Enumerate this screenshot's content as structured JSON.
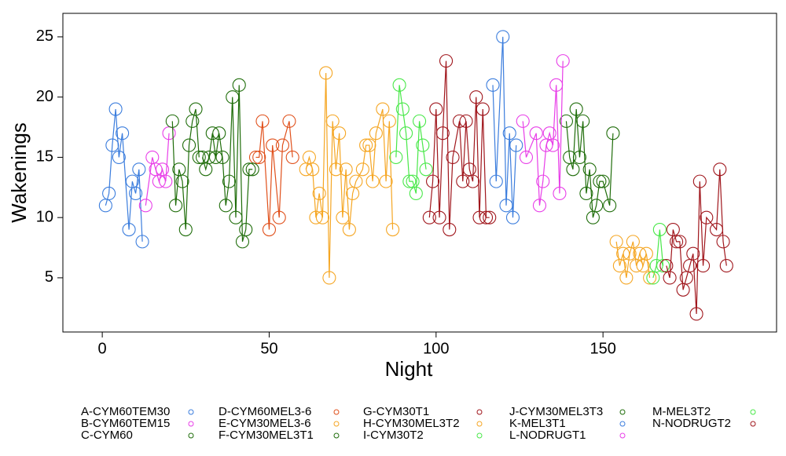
{
  "chart_data": {
    "type": "line",
    "xlabel": "Night",
    "ylabel": "Wakenings",
    "xlim": [
      -11.8,
      202
    ],
    "xticks": [
      0,
      50,
      100,
      150
    ],
    "ylim": [
      0.5,
      26.95
    ],
    "yticks": [
      5,
      10,
      15,
      20,
      25
    ],
    "markers": true,
    "series": [
      {
        "name": "A-CYM60TEM30",
        "color": "#3b7ddd",
        "x": [
          1,
          2,
          3,
          4,
          5,
          6,
          8,
          9,
          10,
          11,
          12
        ],
        "values": [
          11,
          12,
          16,
          19,
          15,
          17,
          9,
          13,
          12,
          14,
          8
        ]
      },
      {
        "name": "B-CYM60TEM15",
        "color": "#e83ee8",
        "x": [
          13,
          15,
          16,
          17,
          18,
          19,
          20
        ],
        "values": [
          11,
          15,
          14,
          13,
          14,
          13,
          17
        ]
      },
      {
        "name": "C-CYM60",
        "color": "#1f6d0a",
        "x": [
          21,
          22,
          23,
          24,
          25,
          26,
          27,
          28,
          29
        ],
        "values": [
          18,
          11,
          14,
          13,
          9,
          16,
          18,
          19,
          15
        ]
      },
      {
        "name": "D-CYM60MEL3-6",
        "color": "#e0501b",
        "x": [
          46,
          47,
          48,
          50,
          51,
          53,
          54,
          56,
          57
        ],
        "values": [
          15,
          15,
          18,
          9,
          16,
          10,
          16,
          18,
          15
        ]
      },
      {
        "name": "E-CYM30MEL3-6",
        "color": "#f5a623",
        "x": [
          154,
          155,
          156,
          157,
          158,
          159,
          160,
          161,
          162,
          163,
          164
        ],
        "values": [
          8,
          6,
          7,
          5,
          7,
          8,
          6,
          7,
          6,
          7,
          5
        ]
      },
      {
        "name": "F-CYM30MEL3T1",
        "color": "#1f6d0a",
        "x": [
          30,
          31,
          32,
          33,
          34,
          35,
          36,
          37,
          38,
          39,
          40,
          41,
          42,
          43,
          44,
          45
        ],
        "values": [
          15,
          14,
          15,
          17,
          15,
          17,
          15,
          11,
          13,
          20,
          10,
          21,
          8,
          9,
          14,
          14
        ]
      },
      {
        "name": "G-CYM30T1",
        "color": "#a0161c",
        "x": [
          98,
          99,
          100,
          101,
          102,
          103,
          104,
          105,
          107,
          108,
          109,
          110,
          111,
          112,
          113,
          114,
          115,
          116
        ],
        "values": [
          10,
          13,
          19,
          10,
          17,
          23,
          9,
          15,
          18,
          13,
          18,
          14,
          13,
          20,
          10,
          19,
          10,
          10
        ]
      },
      {
        "name": "H-CYM30MEL3T2",
        "color": "#f5a623",
        "x": [
          61,
          62,
          63,
          64,
          65,
          66,
          67,
          68,
          69,
          70,
          71,
          72,
          73,
          74,
          75,
          76,
          78,
          79,
          80,
          81,
          82,
          84,
          85,
          86,
          87
        ],
        "values": [
          14,
          15,
          14,
          10,
          12,
          10,
          22,
          5,
          18,
          14,
          17,
          10,
          14,
          9,
          12,
          13,
          14,
          16,
          16,
          13,
          17,
          19,
          13,
          18,
          9
        ]
      },
      {
        "name": "I-CYM30T2",
        "color": "#48e848",
        "x": [
          88,
          89,
          90,
          91,
          92,
          93,
          94,
          95,
          96,
          97
        ],
        "values": [
          15,
          21,
          19,
          17,
          13,
          13,
          12,
          18,
          16,
          14
        ]
      },
      {
        "name": "J-CYM30MEL3T3",
        "color": "#1f6d0a",
        "x": [
          139,
          140,
          141,
          142,
          143,
          144,
          145,
          146,
          147,
          148,
          149,
          150,
          152,
          153
        ],
        "values": [
          18,
          15,
          14,
          19,
          15,
          18,
          12,
          14,
          10,
          11,
          13,
          13,
          11,
          17
        ]
      },
      {
        "name": "K-MEL3T1",
        "color": "#3b7ddd",
        "x": [
          117,
          118,
          120,
          121,
          122,
          123,
          124
        ],
        "values": [
          21,
          13,
          25,
          11,
          17,
          10,
          16
        ]
      },
      {
        "name": "L-NODRUGT1",
        "color": "#e83ee8",
        "x": [
          126,
          127,
          130,
          131,
          132,
          133,
          134,
          135,
          136,
          137,
          138
        ],
        "values": [
          18,
          15,
          17,
          11,
          13,
          16,
          17,
          16,
          21,
          12,
          23
        ]
      },
      {
        "name": "M-MEL3T2",
        "color": "#48e848",
        "x": [
          165,
          166,
          167,
          168
        ],
        "values": [
          5,
          6,
          9,
          6
        ]
      },
      {
        "name": "N-NODRUGT2",
        "color": "#a0161c",
        "x": [
          169,
          170,
          171,
          172,
          173,
          174,
          175,
          176,
          177,
          178,
          179,
          180,
          181,
          184,
          185,
          186,
          187
        ],
        "values": [
          6,
          5,
          9,
          8,
          8,
          4,
          5,
          6,
          7,
          2,
          13,
          6,
          10,
          9,
          14,
          8,
          6
        ]
      }
    ]
  }
}
